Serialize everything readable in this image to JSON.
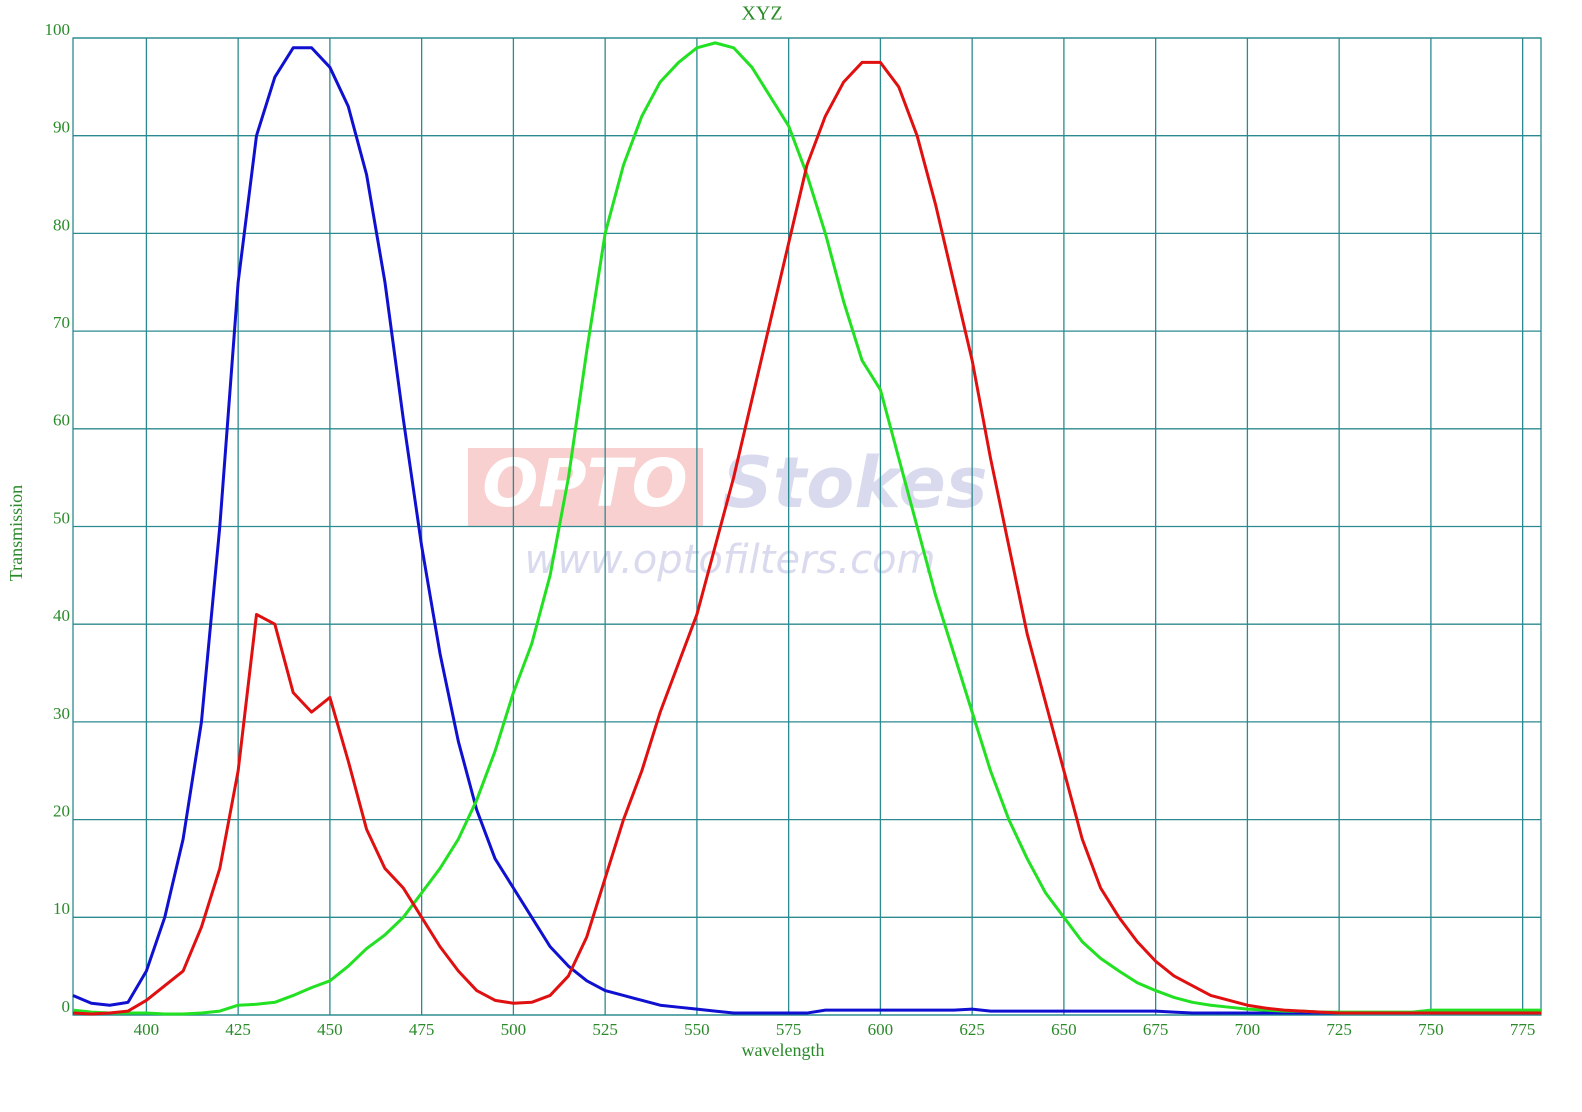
{
  "chart_data": {
    "type": "line",
    "title": "XYZ",
    "x_label": "wavelength",
    "y_label": "Transmission",
    "watermark": {
      "brand_a": "OPTO",
      "brand_b": "Stokes",
      "url": "www.optofilters.com"
    },
    "xlim": [
      380,
      780
    ],
    "ylim": [
      0,
      100
    ],
    "xticks": [
      400,
      425,
      450,
      475,
      500,
      525,
      550,
      575,
      600,
      625,
      650,
      675,
      700,
      725,
      750,
      775
    ],
    "yticks": [
      0,
      10,
      20,
      30,
      40,
      50,
      60,
      70,
      80,
      90,
      100
    ],
    "grid": true,
    "x": [
      380,
      385,
      390,
      395,
      400,
      405,
      410,
      415,
      420,
      425,
      430,
      435,
      440,
      445,
      450,
      455,
      460,
      465,
      470,
      475,
      480,
      485,
      490,
      495,
      500,
      505,
      510,
      515,
      520,
      525,
      530,
      535,
      540,
      545,
      550,
      555,
      560,
      565,
      570,
      575,
      580,
      585,
      590,
      595,
      600,
      605,
      610,
      615,
      620,
      625,
      630,
      635,
      640,
      645,
      650,
      655,
      660,
      665,
      670,
      675,
      680,
      685,
      690,
      695,
      700,
      705,
      710,
      715,
      720,
      725,
      730,
      735,
      740,
      745,
      750,
      755,
      760,
      765,
      770,
      775,
      780
    ],
    "series": [
      {
        "color": "#1010d0",
        "values": [
          2,
          1.2,
          1,
          1.3,
          4.5,
          10,
          18,
          30,
          50,
          75,
          90,
          96,
          99,
          99,
          97,
          93,
          86,
          75,
          61,
          48,
          37,
          28,
          21,
          16,
          13,
          10,
          7,
          5,
          3.5,
          2.5,
          2,
          1.5,
          1,
          0.8,
          0.6,
          0.4,
          0.2,
          0.2,
          0.2,
          0.2,
          0.2,
          0.5,
          0.5,
          0.5,
          0.5,
          0.5,
          0.5,
          0.5,
          0.5,
          0.6,
          0.4,
          0.4,
          0.4,
          0.4,
          0.4,
          0.4,
          0.4,
          0.4,
          0.4,
          0.4,
          0.3,
          0.2,
          0.2,
          0.2,
          0.2,
          0.2,
          0.2,
          0.2,
          0.2,
          0.2,
          0.2,
          0.2,
          0.2,
          0.2,
          0.2,
          0.2,
          0.2,
          0.2,
          0.2,
          0.2,
          0.2
        ]
      },
      {
        "color": "#22e022",
        "values": [
          0.5,
          0.3,
          0.2,
          0.2,
          0.2,
          0.1,
          0.1,
          0.2,
          0.4,
          1,
          1.1,
          1.3,
          2,
          2.8,
          3.5,
          5,
          6.8,
          8.2,
          10,
          12.5,
          15,
          18,
          22,
          27,
          33,
          38,
          45,
          55,
          68,
          80,
          87,
          92,
          95.5,
          97.5,
          99,
          99.5,
          99,
          97,
          94,
          91,
          86,
          80,
          73,
          67,
          64,
          57,
          50,
          43,
          37,
          31,
          25,
          20,
          16,
          12.5,
          10,
          7.5,
          5.8,
          4.5,
          3.3,
          2.5,
          1.8,
          1.3,
          1,
          0.8,
          0.6,
          0.5,
          0.4,
          0.4,
          0.3,
          0.3,
          0.3,
          0.3,
          0.3,
          0.3,
          0.5,
          0.5,
          0.5,
          0.5,
          0.5,
          0.5,
          0.5
        ]
      },
      {
        "color": "#e01010",
        "values": [
          0.2,
          0.1,
          0.2,
          0.4,
          1.5,
          3,
          4.5,
          9,
          15,
          25,
          41,
          40,
          33,
          31,
          32.5,
          26,
          19,
          15,
          13,
          10,
          7,
          4.5,
          2.5,
          1.5,
          1.2,
          1.3,
          2,
          4,
          8,
          14,
          20,
          25,
          31,
          36,
          41,
          48,
          55,
          63,
          71,
          79,
          87,
          92,
          95.5,
          97.5,
          97.5,
          95,
          90,
          83,
          75,
          67,
          57,
          48,
          39,
          32,
          25,
          18,
          13,
          10,
          7.5,
          5.5,
          4,
          3,
          2,
          1.5,
          1,
          0.7,
          0.5,
          0.4,
          0.3,
          0.2,
          0.2,
          0.2,
          0.2,
          0.2,
          0.2,
          0.2,
          0.2,
          0.2,
          0.2,
          0.2,
          0.2
        ]
      }
    ]
  }
}
